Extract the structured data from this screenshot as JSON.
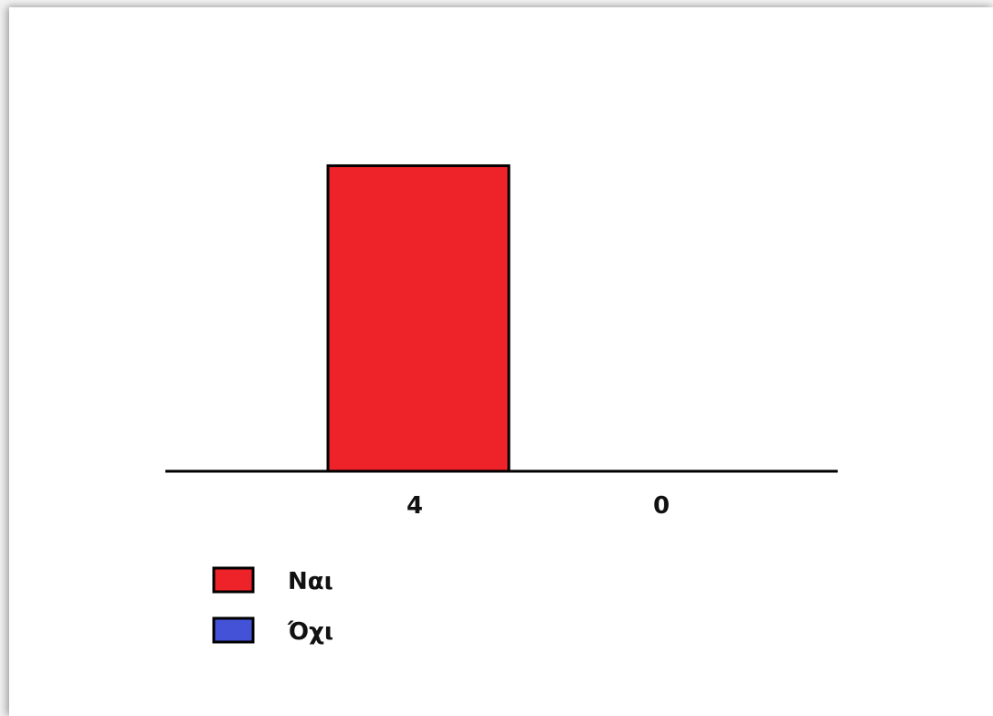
{
  "chart_data": {
    "type": "bar",
    "categories": [
      "Ναι",
      "Όχι"
    ],
    "values": [
      4,
      0
    ],
    "data_labels": [
      "4",
      "0"
    ],
    "colors": [
      "#ee2229",
      "#4352d6"
    ],
    "ylim": [
      0,
      4.4
    ],
    "grid": false,
    "legend": {
      "position": "bottom-left",
      "entries": [
        "Ναι",
        "Όχι"
      ]
    },
    "title": "",
    "xlabel": "",
    "ylabel": ""
  }
}
